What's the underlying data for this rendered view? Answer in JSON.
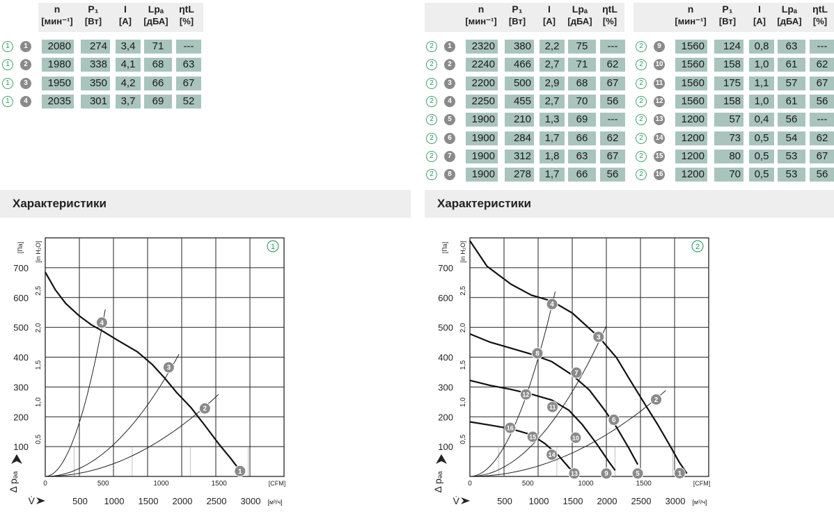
{
  "headers": [
    {
      "sym": "n",
      "unit": "[мин⁻¹]"
    },
    {
      "sym": "P₁",
      "unit": "[Вт]"
    },
    {
      "sym": "I",
      "unit": "[А]"
    },
    {
      "sym": "Lpₐ",
      "unit": "[дБА]"
    },
    {
      "sym": "ηtL",
      "unit": "[%]"
    }
  ],
  "table1": [
    {
      "curve": "1",
      "pt": "1",
      "n": "2080",
      "p": "274",
      "i": "3,4",
      "lp": "71",
      "eta": "---"
    },
    {
      "curve": "1",
      "pt": "2",
      "n": "1980",
      "p": "338",
      "i": "4,1",
      "lp": "68",
      "eta": "63"
    },
    {
      "curve": "1",
      "pt": "3",
      "n": "1950",
      "p": "350",
      "i": "4,2",
      "lp": "66",
      "eta": "67"
    },
    {
      "curve": "1",
      "pt": "4",
      "n": "2035",
      "p": "301",
      "i": "3,7",
      "lp": "69",
      "eta": "52"
    }
  ],
  "table2": [
    {
      "curve": "2",
      "pt": "1",
      "n": "2320",
      "p": "380",
      "i": "2,2",
      "lp": "75",
      "eta": "---"
    },
    {
      "curve": "2",
      "pt": "2",
      "n": "2240",
      "p": "466",
      "i": "2,7",
      "lp": "71",
      "eta": "62"
    },
    {
      "curve": "2",
      "pt": "3",
      "n": "2200",
      "p": "500",
      "i": "2,9",
      "lp": "68",
      "eta": "67"
    },
    {
      "curve": "2",
      "pt": "4",
      "n": "2250",
      "p": "455",
      "i": "2,7",
      "lp": "70",
      "eta": "56"
    },
    {
      "curve": "2",
      "pt": "5",
      "n": "1900",
      "p": "210",
      "i": "1,3",
      "lp": "69",
      "eta": "---"
    },
    {
      "curve": "2",
      "pt": "6",
      "n": "1900",
      "p": "284",
      "i": "1,7",
      "lp": "66",
      "eta": "62"
    },
    {
      "curve": "2",
      "pt": "7",
      "n": "1900",
      "p": "312",
      "i": "1,8",
      "lp": "63",
      "eta": "67"
    },
    {
      "curve": "2",
      "pt": "8",
      "n": "1900",
      "p": "278",
      "i": "1,7",
      "lp": "66",
      "eta": "56"
    }
  ],
  "table3": [
    {
      "curve": "2",
      "pt": "9",
      "n": "1560",
      "p": "124",
      "i": "0,8",
      "lp": "63",
      "eta": "---"
    },
    {
      "curve": "2",
      "pt": "10",
      "n": "1560",
      "p": "158",
      "i": "1,0",
      "lp": "61",
      "eta": "62"
    },
    {
      "curve": "2",
      "pt": "11",
      "n": "1560",
      "p": "175",
      "i": "1,1",
      "lp": "57",
      "eta": "67"
    },
    {
      "curve": "2",
      "pt": "12",
      "n": "1560",
      "p": "158",
      "i": "1,0",
      "lp": "61",
      "eta": "56"
    },
    {
      "curve": "2",
      "pt": "13",
      "n": "1200",
      "p": "57",
      "i": "0,4",
      "lp": "56",
      "eta": "---"
    },
    {
      "curve": "2",
      "pt": "14",
      "n": "1200",
      "p": "73",
      "i": "0,5",
      "lp": "54",
      "eta": "62"
    },
    {
      "curve": "2",
      "pt": "15",
      "n": "1200",
      "p": "80",
      "i": "0,5",
      "lp": "53",
      "eta": "67"
    },
    {
      "curve": "2",
      "pt": "16",
      "n": "1200",
      "p": "70",
      "i": "0,5",
      "lp": "53",
      "eta": "56"
    }
  ],
  "section_title_left": "Характеристики",
  "section_title_right": "Характеристики",
  "chart_data": [
    {
      "type": "line",
      "badge": "1",
      "xlabel": "V̇",
      "ylabel": "Δ pₔₐ",
      "x_unit": "[м³/ч]",
      "x2_unit": "[CFM]",
      "y_unit": "[Па]",
      "y2_unit": "[in H₂O]",
      "xlim": [
        0,
        3500
      ],
      "ylim": [
        0,
        800
      ],
      "x_ticks": [
        500,
        1000,
        1500,
        2000,
        2500,
        3000
      ],
      "x2_ticks": [
        0,
        500,
        1000,
        1500
      ],
      "y_ticks": [
        100,
        200,
        300,
        400,
        500,
        600,
        700
      ],
      "y2_ticks": [
        "0,5",
        "1,0",
        "1,5",
        "2,0",
        "2,5"
      ],
      "series": [
        {
          "kind": "fan",
          "points": [
            [
              0,
              685
            ],
            [
              150,
              625
            ],
            [
              300,
              580
            ],
            [
              500,
              538
            ],
            [
              680,
              508
            ],
            [
              850,
              486
            ],
            [
              1050,
              458
            ],
            [
              1350,
              418
            ],
            [
              1570,
              375
            ],
            [
              1750,
              330
            ],
            [
              1920,
              283
            ],
            [
              2140,
              230
            ],
            [
              2350,
              168
            ],
            [
              2550,
              107
            ],
            [
              2720,
              60
            ],
            [
              2860,
              18
            ]
          ]
        }
      ],
      "system_curves": [
        {
          "to": [
            880,
            560
          ]
        },
        {
          "to": [
            1960,
            410
          ]
        },
        {
          "to": [
            2540,
            275
          ]
        }
      ],
      "markers": [
        {
          "label": "1",
          "x": 2855,
          "y": 18
        },
        {
          "label": "2",
          "x": 2340,
          "y": 228
        },
        {
          "label": "3",
          "x": 1810,
          "y": 366
        },
        {
          "label": "4",
          "x": 830,
          "y": 516
        }
      ]
    },
    {
      "type": "line",
      "badge": "2",
      "xlabel": "V̇",
      "ylabel": "Δ pₔₐ",
      "x_unit": "[м³/ч]",
      "x2_unit": "[CFM]",
      "y_unit": "[Па]",
      "y2_unit": "[in H₂O]",
      "xlim": [
        0,
        3500
      ],
      "ylim": [
        0,
        800
      ],
      "x_ticks": [
        500,
        1000,
        1500,
        2000,
        2500,
        3000
      ],
      "x2_ticks": [
        0,
        500,
        1000,
        1500
      ],
      "y_ticks": [
        100,
        200,
        300,
        400,
        500,
        600,
        700
      ],
      "y2_ticks": [
        "0,5",
        "1,0",
        "1,5",
        "2,0",
        "2,5"
      ],
      "series": [
        {
          "kind": "fan",
          "points": [
            [
              0,
              790
            ],
            [
              250,
              705
            ],
            [
              600,
              645
            ],
            [
              900,
              608
            ],
            [
              1200,
              588
            ],
            [
              1500,
              548
            ],
            [
              1900,
              465
            ],
            [
              2150,
              398
            ],
            [
              2350,
              322
            ],
            [
              2550,
              248
            ],
            [
              2750,
              175
            ],
            [
              2920,
              108
            ],
            [
              3070,
              47
            ],
            [
              3180,
              10
            ]
          ]
        },
        {
          "kind": "fan",
          "points": [
            [
              0,
              478
            ],
            [
              300,
              450
            ],
            [
              600,
              430
            ],
            [
              900,
              410
            ],
            [
              1200,
              385
            ],
            [
              1500,
              340
            ],
            [
              1750,
              290
            ],
            [
              1950,
              230
            ],
            [
              2150,
              165
            ],
            [
              2330,
              95
            ],
            [
              2460,
              40
            ]
          ]
        },
        {
          "kind": "fan",
          "points": [
            [
              0,
              322
            ],
            [
              300,
              305
            ],
            [
              600,
              292
            ],
            [
              900,
              276
            ],
            [
              1200,
              256
            ],
            [
              1450,
              222
            ],
            [
              1650,
              173
            ],
            [
              1850,
              112
            ],
            [
              2050,
              45
            ],
            [
              2130,
              20
            ]
          ]
        },
        {
          "kind": "fan",
          "points": [
            [
              0,
              183
            ],
            [
              300,
              172
            ],
            [
              600,
              160
            ],
            [
              900,
              140
            ],
            [
              1100,
              110
            ],
            [
              1300,
              70
            ],
            [
              1450,
              30
            ],
            [
              1560,
              8
            ]
          ]
        }
      ],
      "system_curves": [
        {
          "to": [
            1250,
            620
          ]
        },
        {
          "to": [
            2000,
            505
          ]
        },
        {
          "to": [
            2870,
            288
          ]
        }
      ],
      "markers": [
        {
          "label": "1",
          "x": 3075,
          "y": 11
        },
        {
          "label": "2",
          "x": 2730,
          "y": 258
        },
        {
          "label": "3",
          "x": 1885,
          "y": 468
        },
        {
          "label": "4",
          "x": 1205,
          "y": 578
        },
        {
          "label": "5",
          "x": 2460,
          "y": 10
        },
        {
          "label": "6",
          "x": 2110,
          "y": 190
        },
        {
          "label": "7",
          "x": 1560,
          "y": 348
        },
        {
          "label": "8",
          "x": 990,
          "y": 413
        },
        {
          "label": "9",
          "x": 2000,
          "y": 10
        },
        {
          "label": "10",
          "x": 1550,
          "y": 130
        },
        {
          "label": "11",
          "x": 1210,
          "y": 233
        },
        {
          "label": "12",
          "x": 820,
          "y": 275
        },
        {
          "label": "13",
          "x": 1530,
          "y": 10
        },
        {
          "label": "14",
          "x": 1200,
          "y": 73
        },
        {
          "label": "15",
          "x": 920,
          "y": 133
        },
        {
          "label": "16",
          "x": 590,
          "y": 163
        }
      ]
    }
  ]
}
